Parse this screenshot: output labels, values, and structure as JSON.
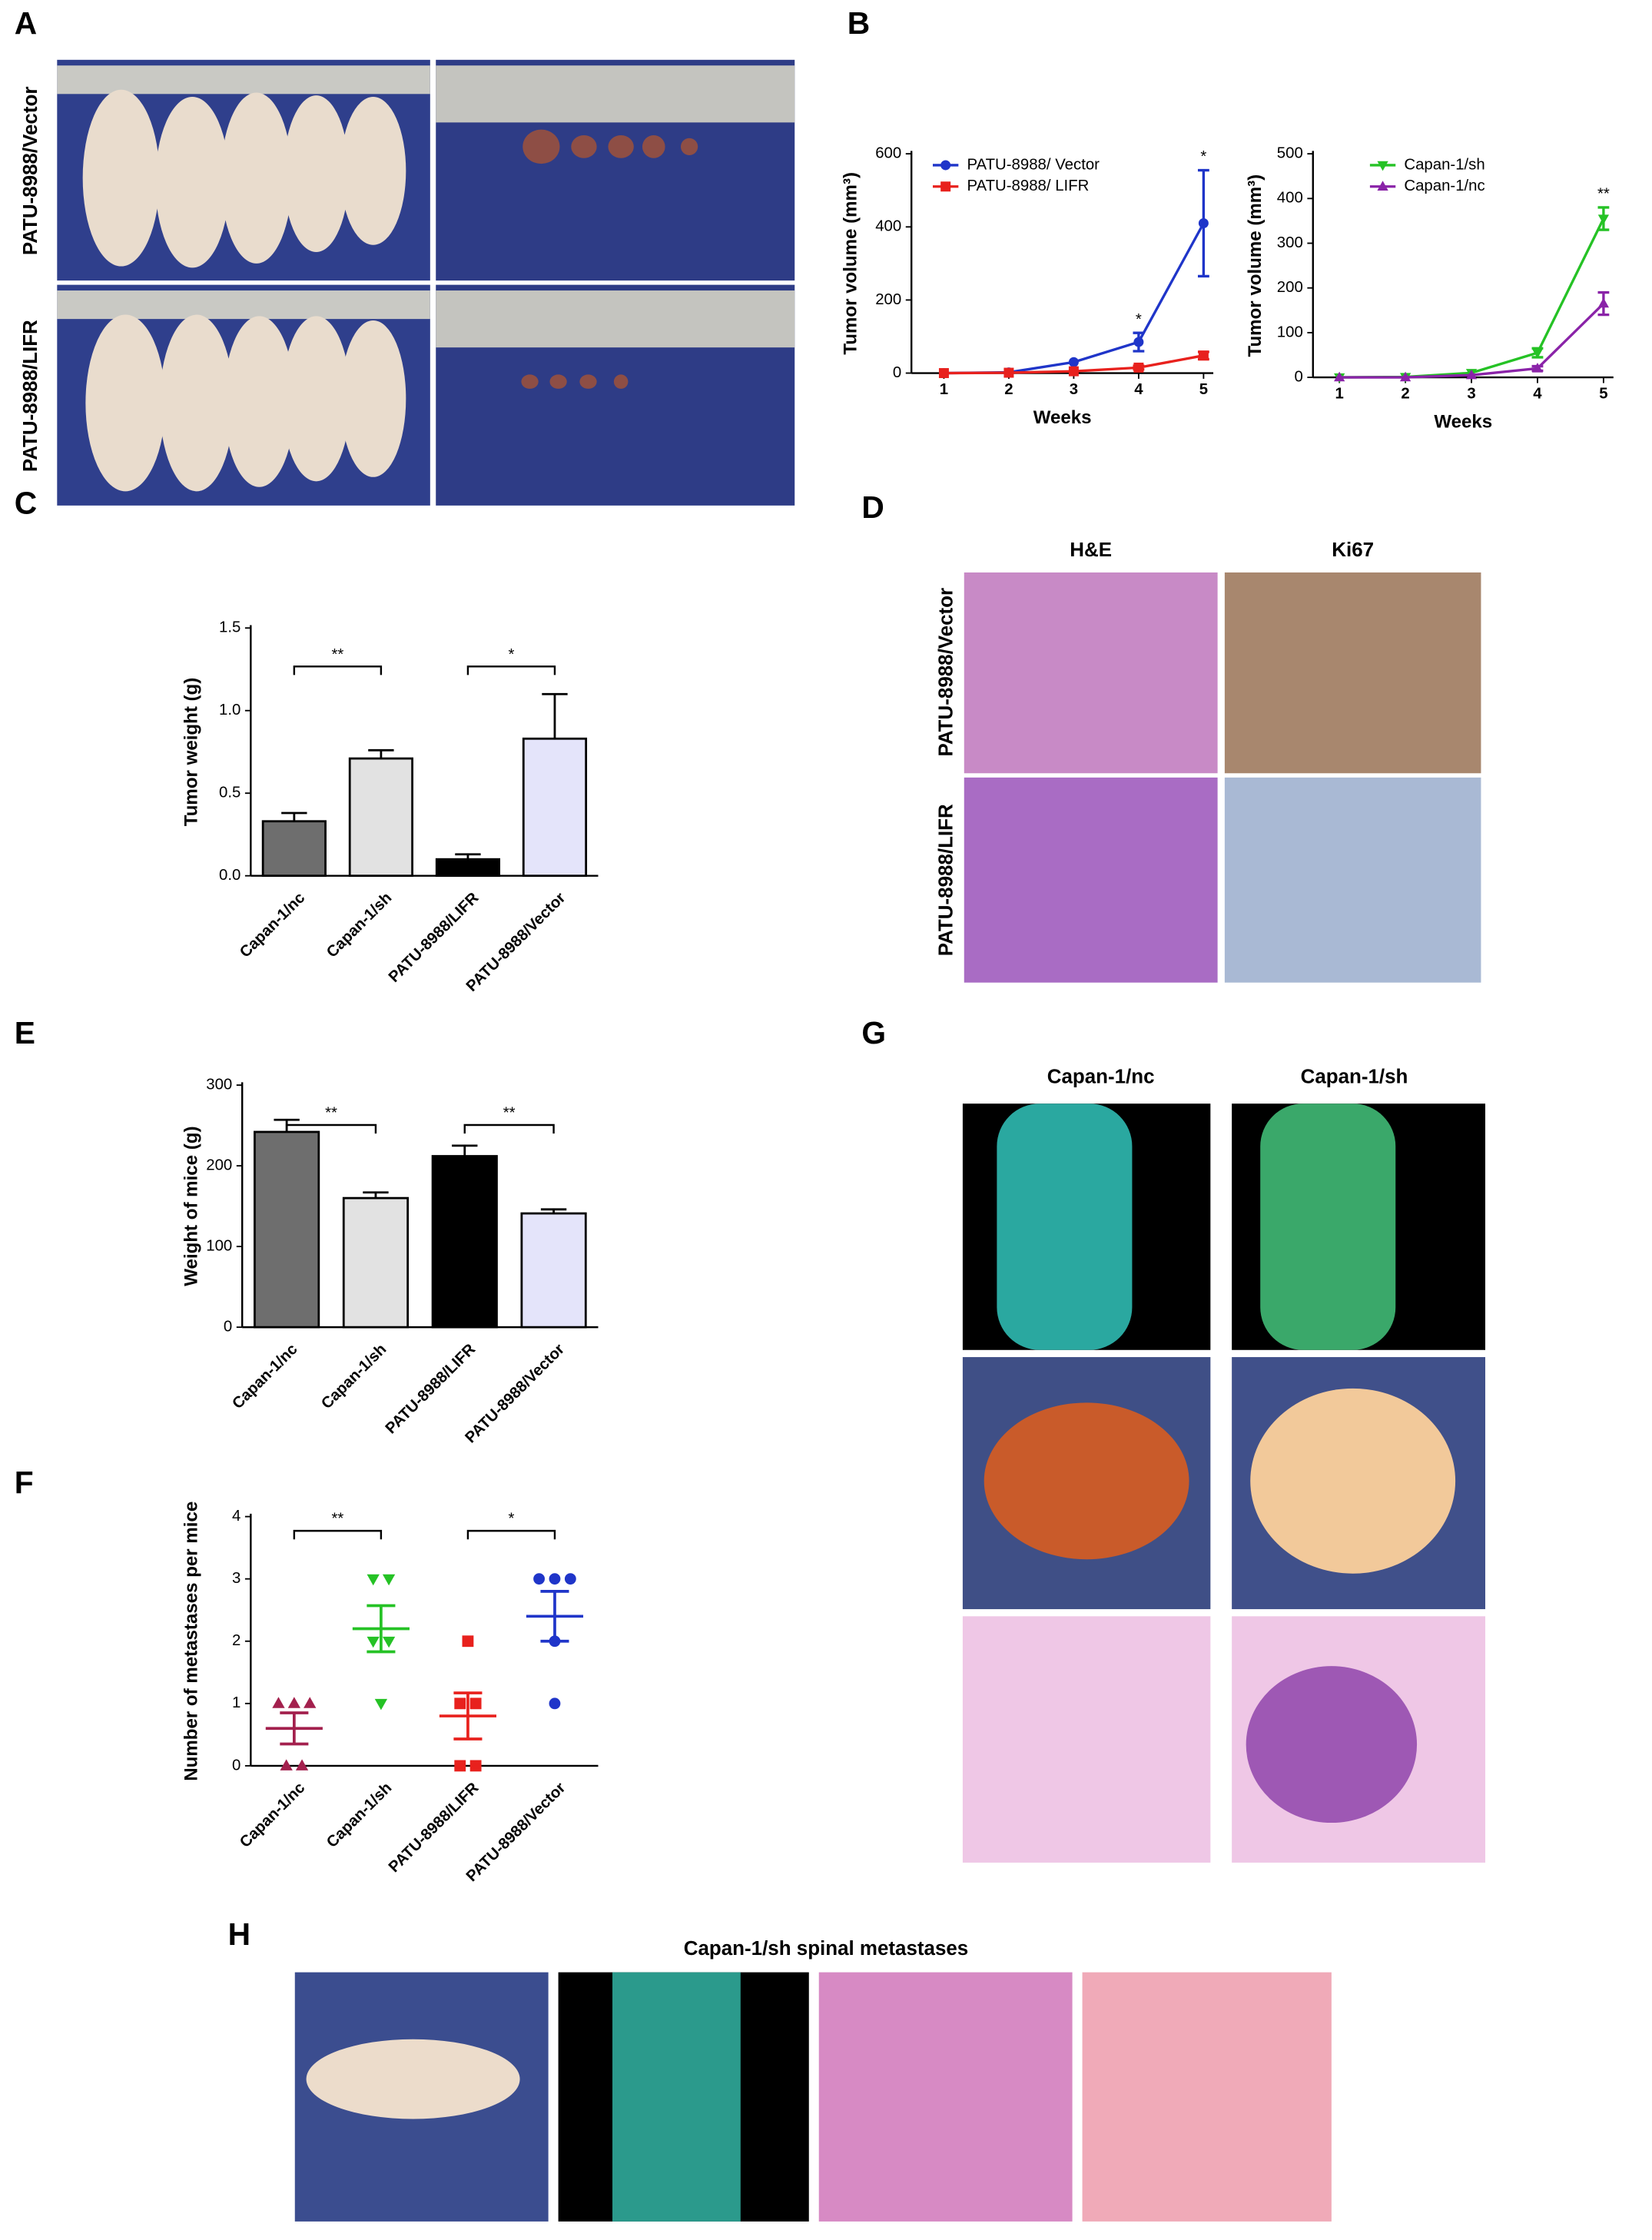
{
  "panel_labels": [
    "A",
    "B",
    "C",
    "D",
    "E",
    "F",
    "G",
    "H"
  ],
  "panel_a": {
    "row_labels": [
      "PATU-8988/Vector",
      "PATU-8988/LIFR"
    ]
  },
  "panel_d": {
    "column_labels": [
      "H&E",
      "Ki67"
    ],
    "row_labels": [
      "PATU-8988/Vector",
      "PATU-8988/LIFR"
    ]
  },
  "panel_g": {
    "column_labels": [
      "Capan-1/nc",
      "Capan-1/sh"
    ]
  },
  "panel_h": {
    "title": "Capan-1/sh spinal metastases"
  },
  "chart_data": [
    {
      "type": "line",
      "x_label": "Weeks",
      "y_label": "Tumor volume (mm³)",
      "x": [
        1,
        2,
        3,
        4,
        5
      ],
      "xlim": [
        0.5,
        5.15
      ],
      "xticks": [
        1,
        2,
        3,
        4,
        5
      ],
      "ylim": [
        0,
        600
      ],
      "yticks": [
        0,
        200,
        400,
        600
      ],
      "series": [
        {
          "name": "PATU-8988/ Vector",
          "color": "#1f35c9",
          "marker": "circle",
          "values": [
            0,
            2,
            30,
            85,
            410
          ],
          "errors": [
            0,
            0,
            0,
            25,
            145
          ]
        },
        {
          "name": "PATU-8988/ LIFR",
          "color": "#e8211d",
          "marker": "square",
          "values": [
            0,
            1,
            5,
            15,
            48
          ],
          "errors": [
            0,
            0,
            0,
            5,
            10
          ]
        }
      ],
      "significance": [
        null,
        null,
        null,
        "*",
        "*"
      ]
    },
    {
      "type": "line",
      "x_label": "Weeks",
      "y_label": "Tumor volume (mm³)",
      "x": [
        1,
        2,
        3,
        4,
        5
      ],
      "xlim": [
        0.6,
        5.15
      ],
      "xticks": [
        1,
        2,
        3,
        4,
        5
      ],
      "ylim": [
        0,
        500
      ],
      "yticks": [
        0,
        100,
        200,
        300,
        400,
        500
      ],
      "series": [
        {
          "name": "Capan-1/sh",
          "color": "#25c225",
          "marker": "triangle-down",
          "values": [
            0,
            1,
            10,
            55,
            355
          ],
          "errors": [
            0,
            0,
            0,
            10,
            25
          ]
        },
        {
          "name": "Capan-1/nc",
          "color": "#8a23a8",
          "marker": "triangle-up",
          "values": [
            0,
            0,
            5,
            20,
            165
          ],
          "errors": [
            0,
            0,
            0,
            5,
            25
          ]
        }
      ],
      "significance": [
        null,
        null,
        null,
        null,
        "**"
      ]
    },
    {
      "type": "bar",
      "y_label": "Tumor weight (g)",
      "categories": [
        "Capan-1/nc",
        "Capan-1/sh",
        "PATU-8988/LIFR",
        "PATU-8988/Vector"
      ],
      "values": [
        0.33,
        0.71,
        0.1,
        0.83
      ],
      "errors": [
        0.05,
        0.05,
        0.03,
        0.27
      ],
      "colors": [
        "#6e6e6e",
        "#e2e2e2",
        "#000000",
        "#e4e4fa"
      ],
      "ylim": [
        0,
        1.5
      ],
      "yticks": [
        {
          "value": 0,
          "label": "0.0"
        },
        0.5,
        {
          "value": 1,
          "label": "1.0"
        },
        1.5
      ],
      "significance": [
        "**",
        "*"
      ]
    },
    {
      "type": "bar",
      "y_label": "Weight of mice (g)",
      "categories": [
        "Capan-1/nc",
        "Capan-1/sh",
        "PATU-8988/LIFR",
        "PATU-8988/Vector"
      ],
      "values": [
        242,
        160,
        212,
        141
      ],
      "errors": [
        15,
        7,
        13,
        5
      ],
      "colors": [
        "#6e6e6e",
        "#e2e2e2",
        "#000000",
        "#e4e4fa"
      ],
      "ylim": [
        0,
        300
      ],
      "yticks": [
        0,
        100,
        200,
        300
      ],
      "significance": [
        "**",
        "**"
      ]
    },
    {
      "type": "dot",
      "y_label": "Number of metastases per mice",
      "categories": [
        "Capan-1/nc",
        "Capan-1/sh",
        "PATU-8988/LIFR",
        "PATU-8988/Vector"
      ],
      "points": [
        [
          1,
          1,
          1,
          0,
          0
        ],
        [
          3,
          3,
          2,
          2,
          1
        ],
        [
          2,
          1,
          1,
          0,
          0
        ],
        [
          3,
          3,
          3,
          2,
          1
        ]
      ],
      "means": [
        0.6,
        2.2,
        0.8,
        2.4
      ],
      "errors": [
        0.25,
        0.37,
        0.37,
        0.4
      ],
      "colors": [
        "#a3204d",
        "#25c225",
        "#e8211d",
        "#1f35c9"
      ],
      "markers": [
        "triangle-up",
        "triangle-down",
        "square",
        "circle"
      ],
      "ylim": [
        0,
        4
      ],
      "yticks": [
        0,
        1,
        2,
        3,
        4
      ],
      "significance": [
        "**",
        "*"
      ]
    }
  ]
}
